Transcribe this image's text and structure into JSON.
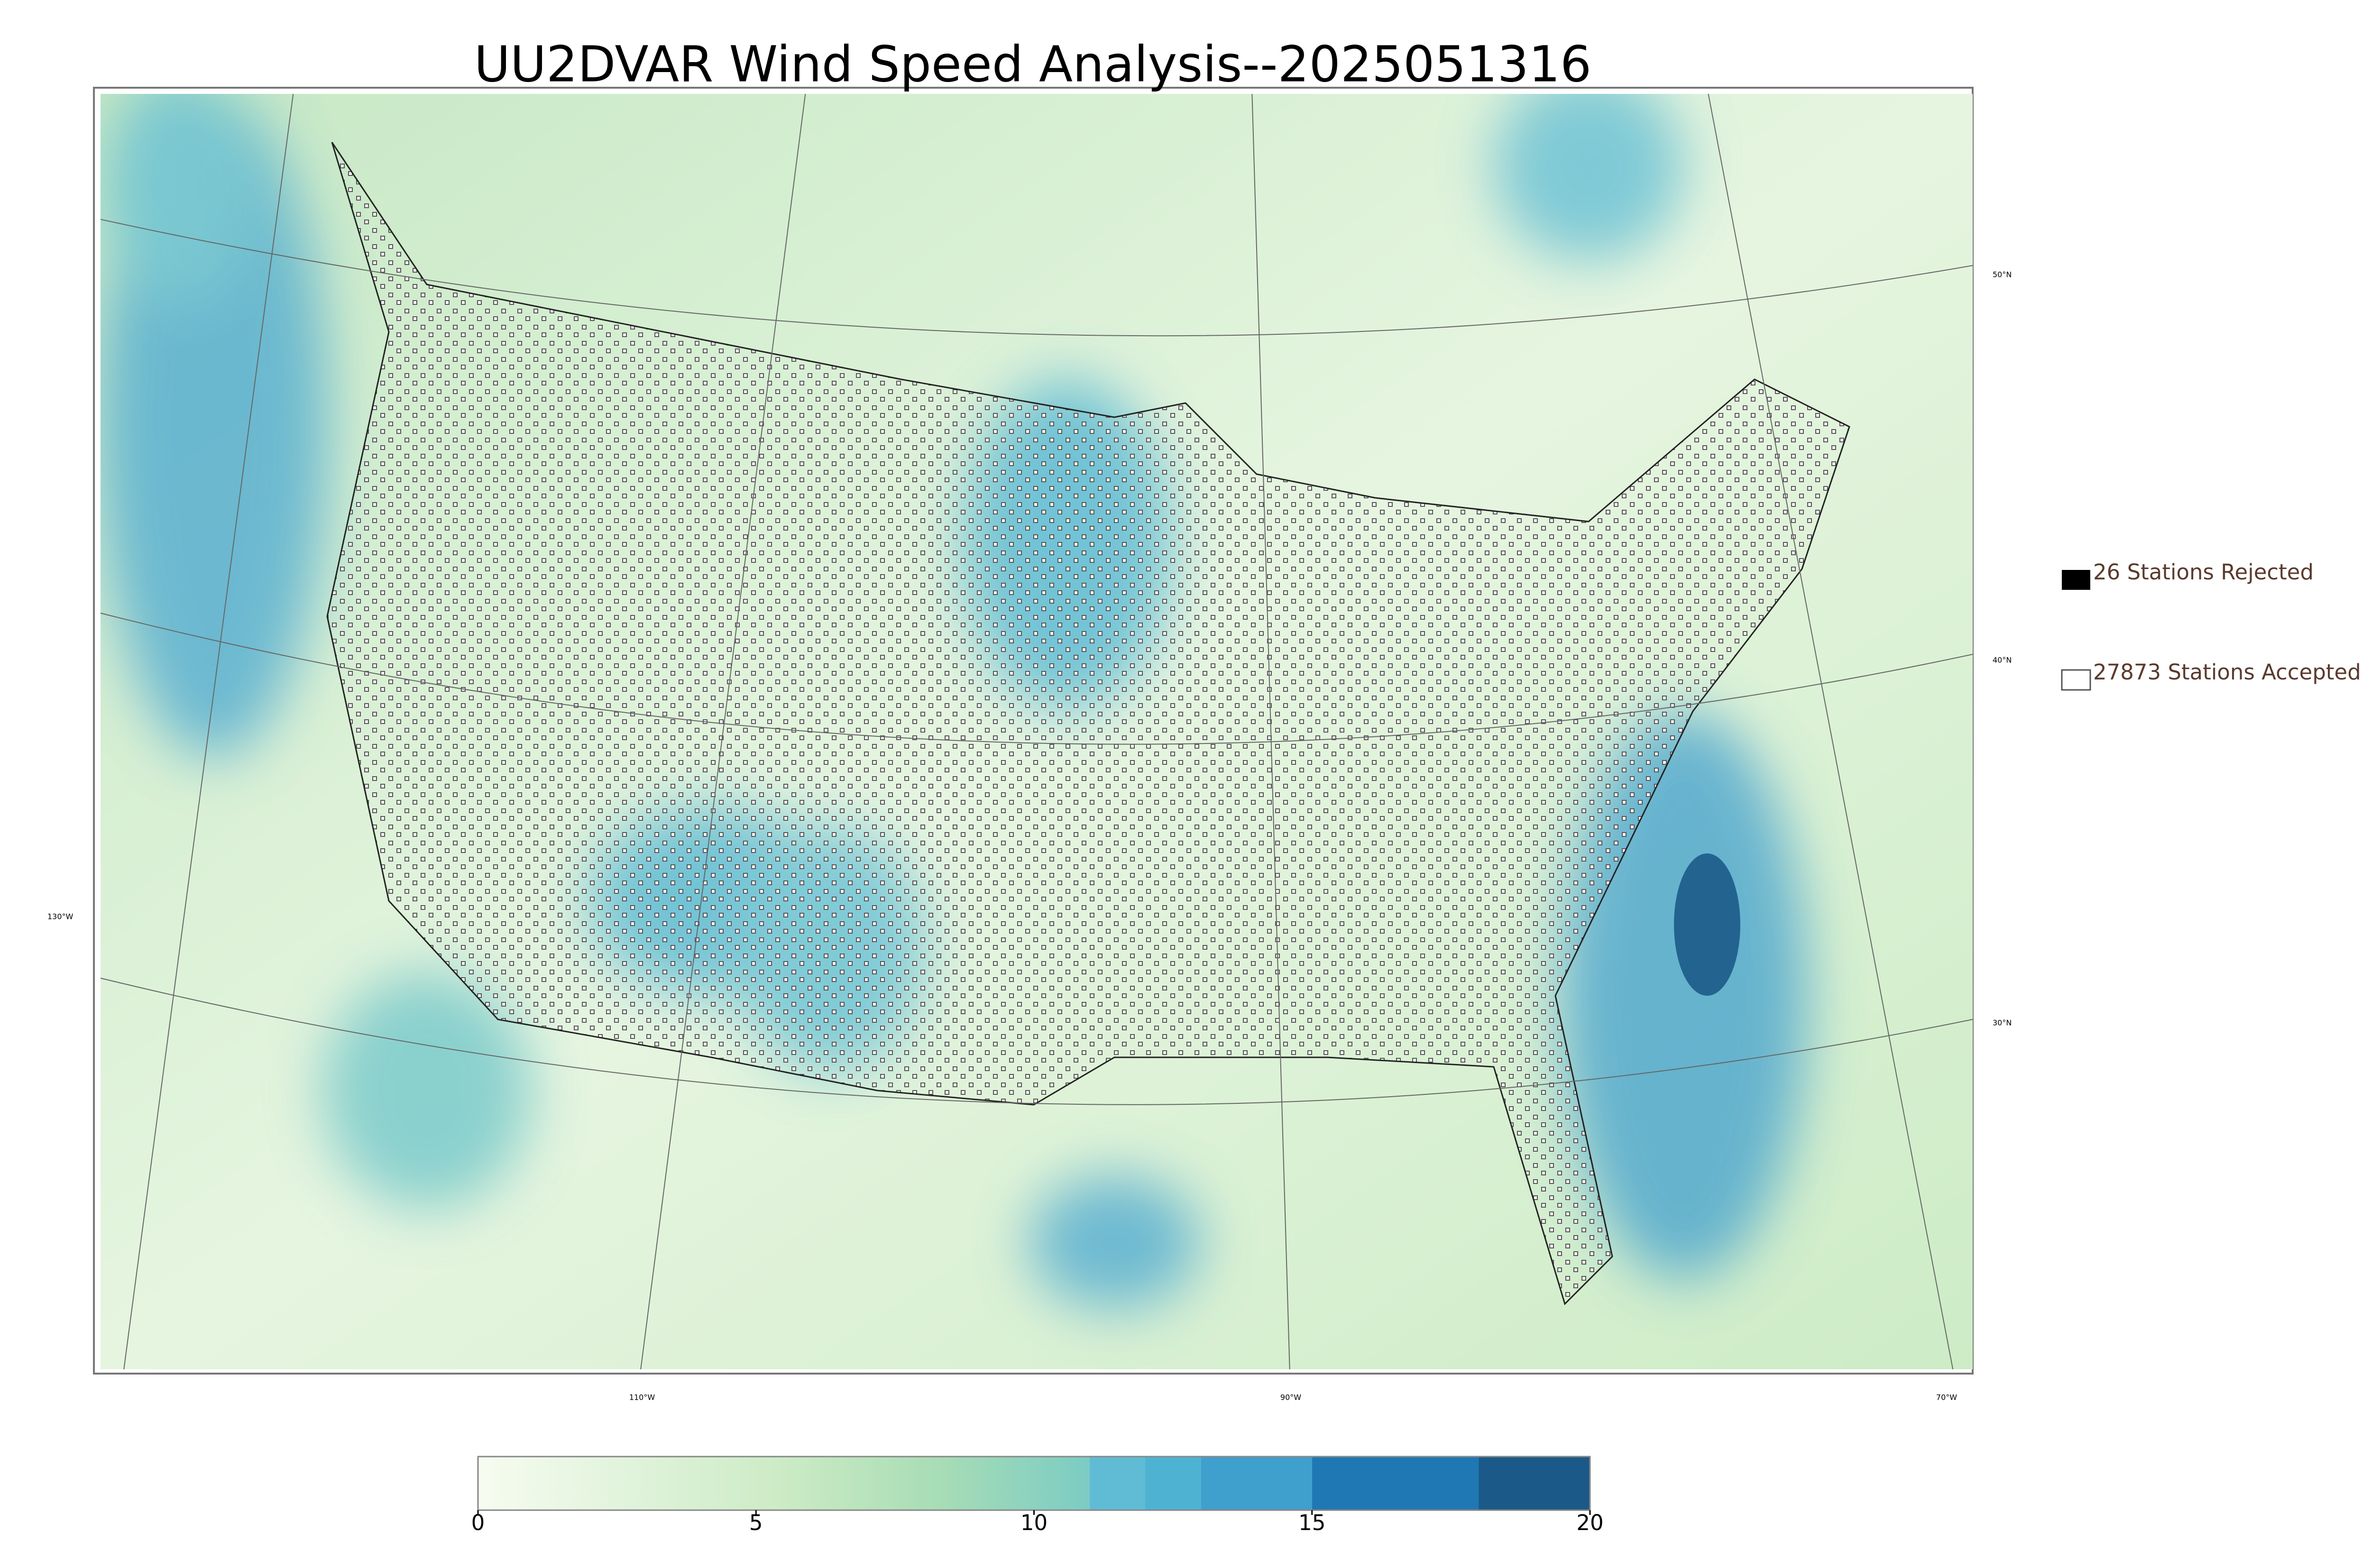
{
  "title": "UU2DVAR Wind Speed Analysis--2025051316",
  "legend": {
    "rejected": "26 Stations Rejected",
    "accepted": "27873 Stations Accepted"
  },
  "graticule_labels": {
    "lat": [
      "50°N",
      "40°N",
      "30°N"
    ],
    "lon": [
      "130°W",
      "110°W",
      "90°W",
      "70°W"
    ]
  },
  "colorbar": {
    "lim": [
      0,
      20
    ],
    "ticks": [
      0,
      5,
      10,
      15,
      20
    ],
    "gradient_colors": [
      "#f7fcf0",
      "#e0f3db",
      "#ccebc5",
      "#a8ddb5",
      "#7bccc4"
    ],
    "levels": [
      11,
      12,
      13,
      15,
      18,
      20
    ],
    "level_colors": [
      "#5fbcd4",
      "#4eb3d3",
      "#3f9fcd",
      "#1f78b4",
      "#1b5a88"
    ]
  }
}
